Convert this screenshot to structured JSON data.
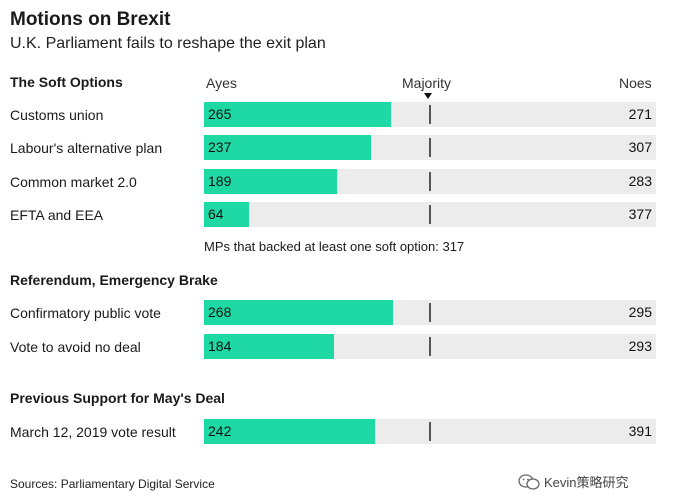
{
  "title": "Motions on Brexit",
  "subtitle": "U.K. Parliament fails to reshape the exit plan",
  "headers": {
    "ayes": "Ayes",
    "majority": "Majority",
    "noes": "Noes"
  },
  "note": "MPs that backed at least one soft option: 317",
  "source": "Sources: Parliamentary Digital Service",
  "watermark": "Kevin策略研究",
  "colors": {
    "bar": "#1ed9a4",
    "track": "#ececec",
    "majority_line": "#555555"
  },
  "chart_data": {
    "type": "bar",
    "title": "Motions on Brexit",
    "subtitle": "U.K. Parliament fails to reshape the exit plan",
    "xlim": [
      0,
      640
    ],
    "majority_marker": 320,
    "sections": [
      {
        "title": "The Soft Options",
        "rows": [
          {
            "label": "Customs union",
            "ayes": 265,
            "noes": 271
          },
          {
            "label": "Labour's alternative plan",
            "ayes": 237,
            "noes": 307
          },
          {
            "label": "Common market 2.0",
            "ayes": 189,
            "noes": 283
          },
          {
            "label": "EFTA and EEA",
            "ayes": 64,
            "noes": 377
          }
        ]
      },
      {
        "title": "Referendum, Emergency Brake",
        "rows": [
          {
            "label": "Confirmatory public vote",
            "ayes": 268,
            "noes": 295
          },
          {
            "label": "Vote to avoid no deal",
            "ayes": 184,
            "noes": 293
          }
        ]
      },
      {
        "title": "Previous Support for May's Deal",
        "rows": [
          {
            "label": "March 12, 2019 vote result",
            "ayes": 242,
            "noes": 391
          }
        ]
      }
    ]
  }
}
